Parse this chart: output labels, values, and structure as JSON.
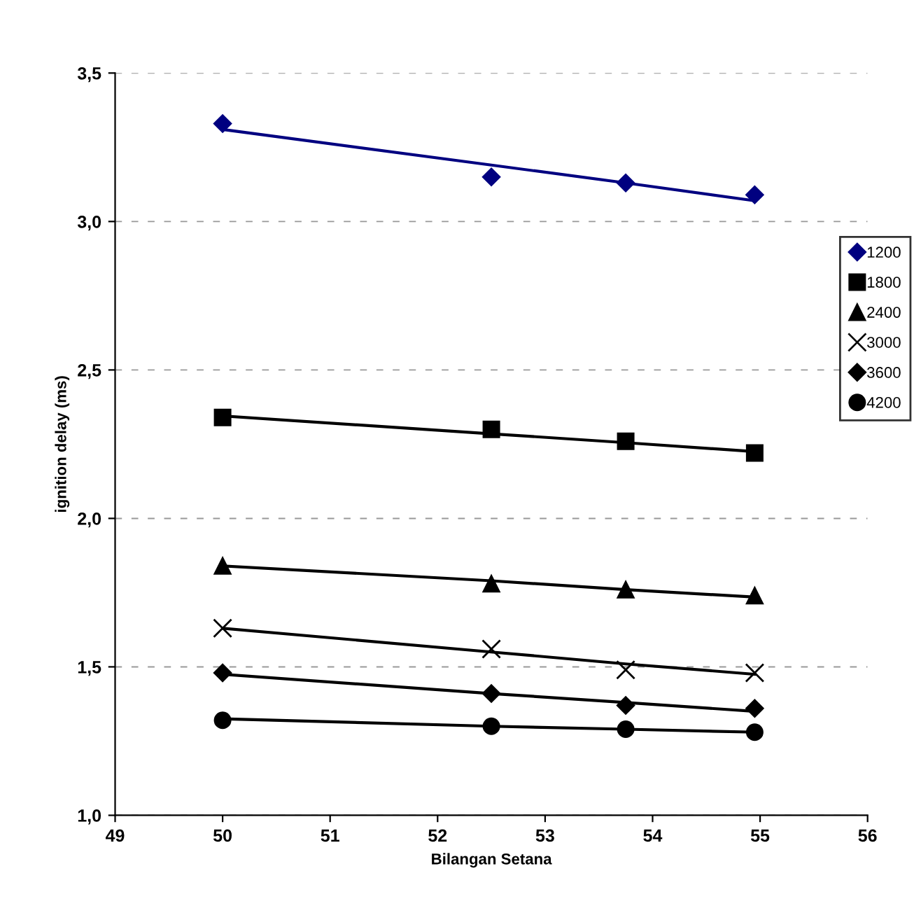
{
  "chart_data": {
    "type": "scatter",
    "xlabel": "Bilangan Setana",
    "ylabel": "ignition delay (ms)",
    "x": [
      50,
      52.5,
      53.75,
      54.95
    ],
    "series": [
      {
        "name": "1200",
        "color": "#000080",
        "marker": "diamond",
        "values": [
          3.33,
          3.15,
          3.13,
          3.09
        ]
      },
      {
        "name": "1800",
        "color": "#000000",
        "marker": "square",
        "values": [
          2.34,
          2.3,
          2.26,
          2.22
        ]
      },
      {
        "name": "2400",
        "color": "#000000",
        "marker": "triangle",
        "values": [
          1.84,
          1.78,
          1.76,
          1.74
        ]
      },
      {
        "name": "3000",
        "color": "#000000",
        "marker": "cross",
        "values": [
          1.63,
          1.56,
          1.49,
          1.48
        ]
      },
      {
        "name": "3600",
        "color": "#000000",
        "marker": "diamond",
        "values": [
          1.48,
          1.41,
          1.37,
          1.36
        ]
      },
      {
        "name": "4200",
        "color": "#000000",
        "marker": "circle",
        "values": [
          1.32,
          1.3,
          1.29,
          1.28
        ]
      },
      {
        "type": "line",
        "color": "#000080",
        "values": [
          3.31,
          3.19,
          3.13,
          3.07
        ]
      },
      {
        "type": "line",
        "color": "#000000",
        "values": [
          2.345,
          2.285,
          2.255,
          2.225
        ]
      },
      {
        "type": "line",
        "color": "#000000",
        "values": [
          1.84,
          1.79,
          1.76,
          1.735
        ]
      },
      {
        "type": "line",
        "color": "#000000",
        "values": [
          1.63,
          1.55,
          1.51,
          1.475
        ]
      },
      {
        "type": "line",
        "color": "#000000",
        "values": [
          1.475,
          1.41,
          1.38,
          1.35
        ]
      },
      {
        "type": "line",
        "color": "#000000",
        "values": [
          1.325,
          1.3,
          1.29,
          1.28
        ]
      }
    ],
    "xlim": [
      49,
      56
    ],
    "xticks": [
      49,
      50,
      51,
      52,
      53,
      54,
      55,
      56
    ],
    "ylim": [
      1.0,
      3.5
    ],
    "yticks": [
      {
        "value": 1.0,
        "label": "1,0"
      },
      {
        "value": 1.5,
        "label": "1,5"
      },
      {
        "value": 2.0,
        "label": "2,0"
      },
      {
        "value": 2.5,
        "label": "2,5"
      },
      {
        "value": 3.0,
        "label": "3,0"
      },
      {
        "value": 3.5,
        "label": "3,5"
      }
    ],
    "grid": "y",
    "legend": "right"
  }
}
